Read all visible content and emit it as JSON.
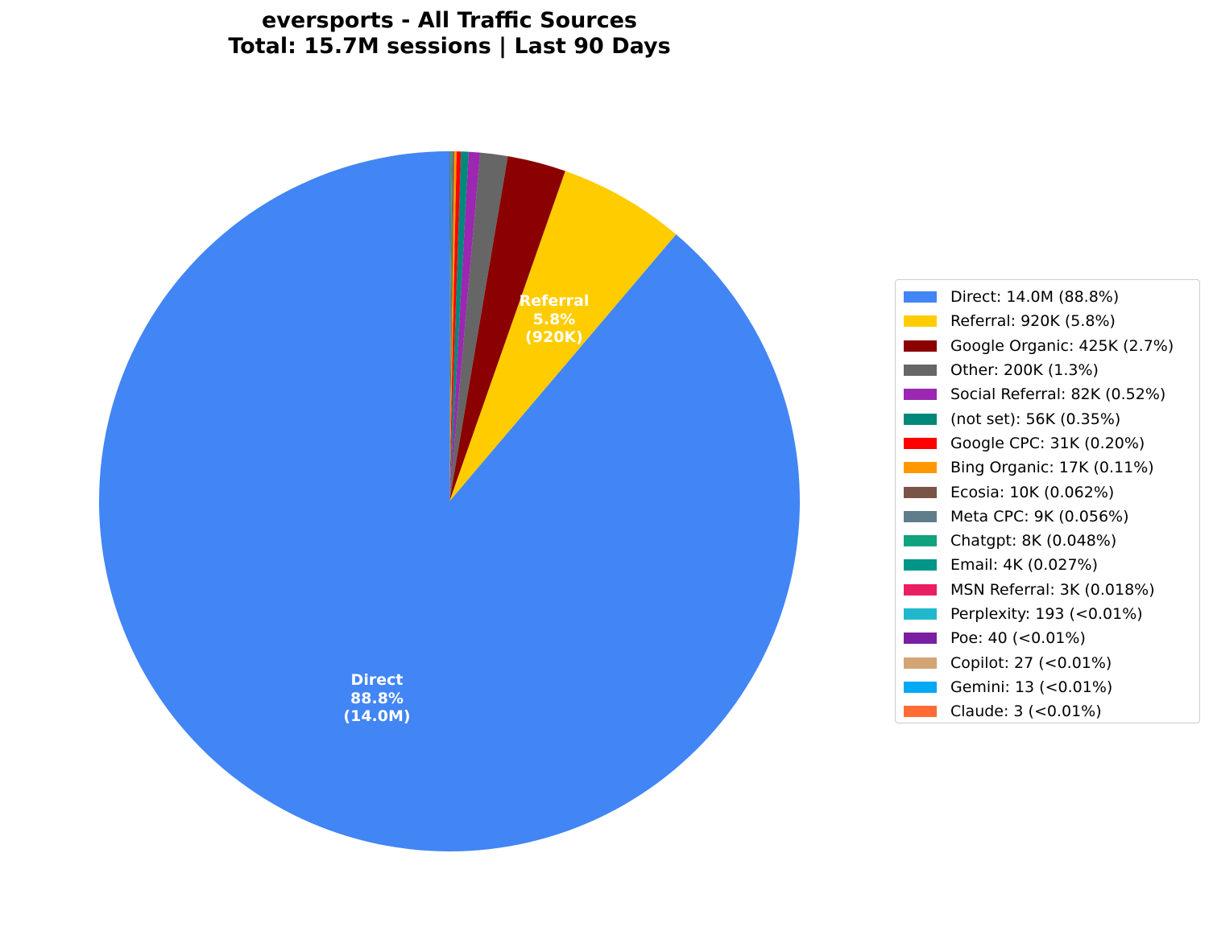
{
  "chart_data": {
    "type": "pie",
    "title": "eversports - All Traffic Sources",
    "subtitle": "Total: 15.7M sessions | Last 90 Days",
    "total_sessions": "15.7M",
    "start_angle_deg": 90,
    "direction": "counterclockwise",
    "legend_position": "right",
    "slices": [
      {
        "name": "Direct",
        "value": 14000000,
        "display": "14.0M",
        "percent": 88.8,
        "percent_label": "88.8%",
        "color": "#4285F4",
        "legend": "Direct: 14.0M (88.8%)"
      },
      {
        "name": "Referral",
        "value": 920000,
        "display": "920K",
        "percent": 5.8,
        "percent_label": "5.8%",
        "color": "#FFCC00",
        "legend": "Referral: 920K (5.8%)"
      },
      {
        "name": "Google Organic",
        "value": 425000,
        "display": "425K",
        "percent": 2.7,
        "percent_label": "2.7%",
        "color": "#8B0000",
        "legend": "Google Organic: 425K (2.7%)"
      },
      {
        "name": "Other",
        "value": 200000,
        "display": "200K",
        "percent": 1.3,
        "percent_label": "1.3%",
        "color": "#666666",
        "legend": "Other: 200K (1.3%)"
      },
      {
        "name": "Social Referral",
        "value": 82000,
        "display": "82K",
        "percent": 0.52,
        "percent_label": "0.52%",
        "color": "#9C27B0",
        "legend": "Social Referral: 82K (0.52%)"
      },
      {
        "name": "(not set)",
        "value": 56000,
        "display": "56K",
        "percent": 0.35,
        "percent_label": "0.35%",
        "color": "#00897B",
        "legend": "(not set): 56K (0.35%)"
      },
      {
        "name": "Google CPC",
        "value": 31000,
        "display": "31K",
        "percent": 0.2,
        "percent_label": "0.20%",
        "color": "#FF0000",
        "legend": "Google CPC: 31K (0.20%)"
      },
      {
        "name": "Bing Organic",
        "value": 17000,
        "display": "17K",
        "percent": 0.11,
        "percent_label": "0.11%",
        "color": "#FF9800",
        "legend": "Bing Organic: 17K (0.11%)"
      },
      {
        "name": "Ecosia",
        "value": 10000,
        "display": "10K",
        "percent": 0.062,
        "percent_label": "0.062%",
        "color": "#795548",
        "legend": "Ecosia: 10K (0.062%)"
      },
      {
        "name": "Meta CPC",
        "value": 9000,
        "display": "9K",
        "percent": 0.056,
        "percent_label": "0.056%",
        "color": "#607D8B",
        "legend": "Meta CPC: 9K (0.056%)"
      },
      {
        "name": "Chatgpt",
        "value": 8000,
        "display": "8K",
        "percent": 0.048,
        "percent_label": "0.048%",
        "color": "#10A37F",
        "legend": "Chatgpt: 8K (0.048%)"
      },
      {
        "name": "Email",
        "value": 4000,
        "display": "4K",
        "percent": 0.027,
        "percent_label": "0.027%",
        "color": "#009688",
        "legend": "Email: 4K (0.027%)"
      },
      {
        "name": "MSN Referral",
        "value": 3000,
        "display": "3K",
        "percent": 0.018,
        "percent_label": "0.018%",
        "color": "#E91E63",
        "legend": "MSN Referral: 3K (0.018%)"
      },
      {
        "name": "Perplexity",
        "value": 193,
        "display": "193",
        "percent": 0.0012,
        "percent_label": "<0.01%",
        "color": "#20B8CD",
        "legend": "Perplexity: 193 (<0.01%)"
      },
      {
        "name": "Poe",
        "value": 40,
        "display": "40",
        "percent": 0.0003,
        "percent_label": "<0.01%",
        "color": "#7B1FA2",
        "legend": "Poe: 40 (<0.01%)"
      },
      {
        "name": "Copilot",
        "value": 27,
        "display": "27",
        "percent": 0.0002,
        "percent_label": "<0.01%",
        "color": "#D4A574",
        "legend": "Copilot: 27 (<0.01%)"
      },
      {
        "name": "Gemini",
        "value": 13,
        "display": "13",
        "percent": 0.0001,
        "percent_label": "<0.01%",
        "color": "#03A9F4",
        "legend": "Gemini: 13 (<0.01%)"
      },
      {
        "name": "Claude",
        "value": 3,
        "display": "3",
        "percent": 2e-05,
        "percent_label": "<0.01%",
        "color": "#FF6B35",
        "legend": "Claude: 3 (<0.01%)"
      }
    ],
    "slice_labels": [
      {
        "line1": "Direct",
        "line2": "88.8%",
        "line3": "(14.0M)"
      },
      {
        "line1": "Referral",
        "line2": "5.8%",
        "line3": "(920K)"
      }
    ]
  }
}
